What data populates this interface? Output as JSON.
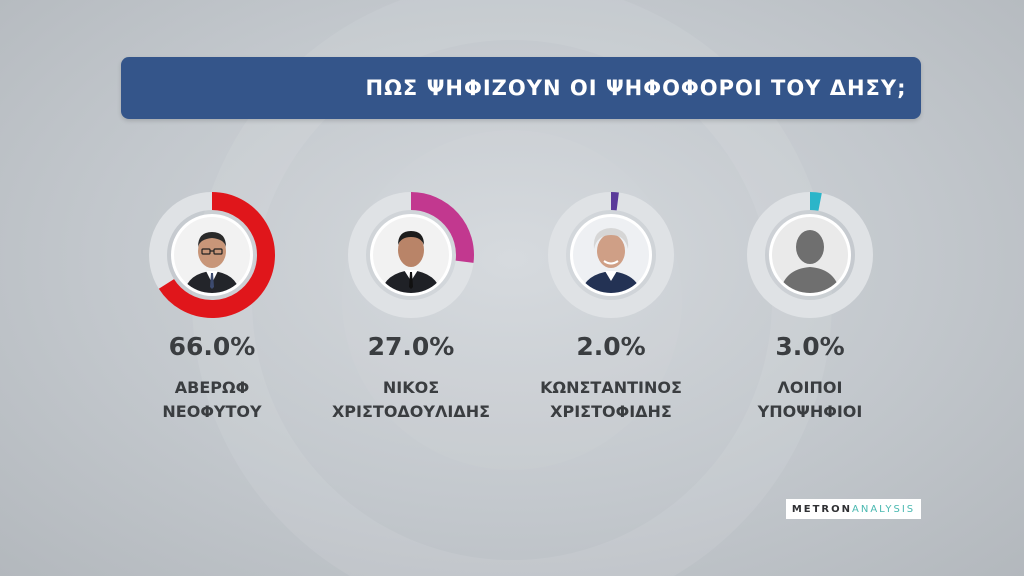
{
  "title": "ΠΩΣ ΨΗΦΙΖΟΥΝ ΟΙ ΨΗΦΟΦΟΡΟΙ ΤΟΥ ΔΗΣΥ;",
  "chart_data": {
    "type": "pie",
    "title": "ΠΩΣ ΨΗΦΙΖΟΥΝ ΟΙ ΨΗΦΟΦΟΡΟΙ ΤΟΥ ΔΗΣΥ;",
    "unit": "%",
    "candidates": [
      {
        "pct_label": "66.0%",
        "value": 66.0,
        "name_line1": "ΑΒΕΡΩΦ",
        "name_line2": "ΝΕΟΦΥΤΟΥ",
        "color": "#e0161b",
        "avatar": "man-glasses"
      },
      {
        "pct_label": "27.0%",
        "value": 27.0,
        "name_line1": "ΝΙΚΟΣ",
        "name_line2": "ΧΡΙΣΤΟΔΟΥΛΙΔΗΣ",
        "color": "#c2388f",
        "avatar": "man-suit"
      },
      {
        "pct_label": "2.0%",
        "value": 2.0,
        "name_line1": "ΚΩΝΣΤΑΝΤΙΝΟΣ",
        "name_line2": "ΧΡΙΣΤΟΦΙΔΗΣ",
        "color": "#5a3a9a",
        "avatar": "man-grey-hair"
      },
      {
        "pct_label": "3.0%",
        "value": 3.0,
        "name_line1": "ΛΟΙΠΟΙ",
        "name_line2": "ΥΠΟΨΗΦΙΟΙ",
        "color": "#2bb5c9",
        "avatar": "person-silhouette"
      }
    ]
  },
  "logo": {
    "part1": "METRON",
    "part2": "ANALYSIS"
  }
}
